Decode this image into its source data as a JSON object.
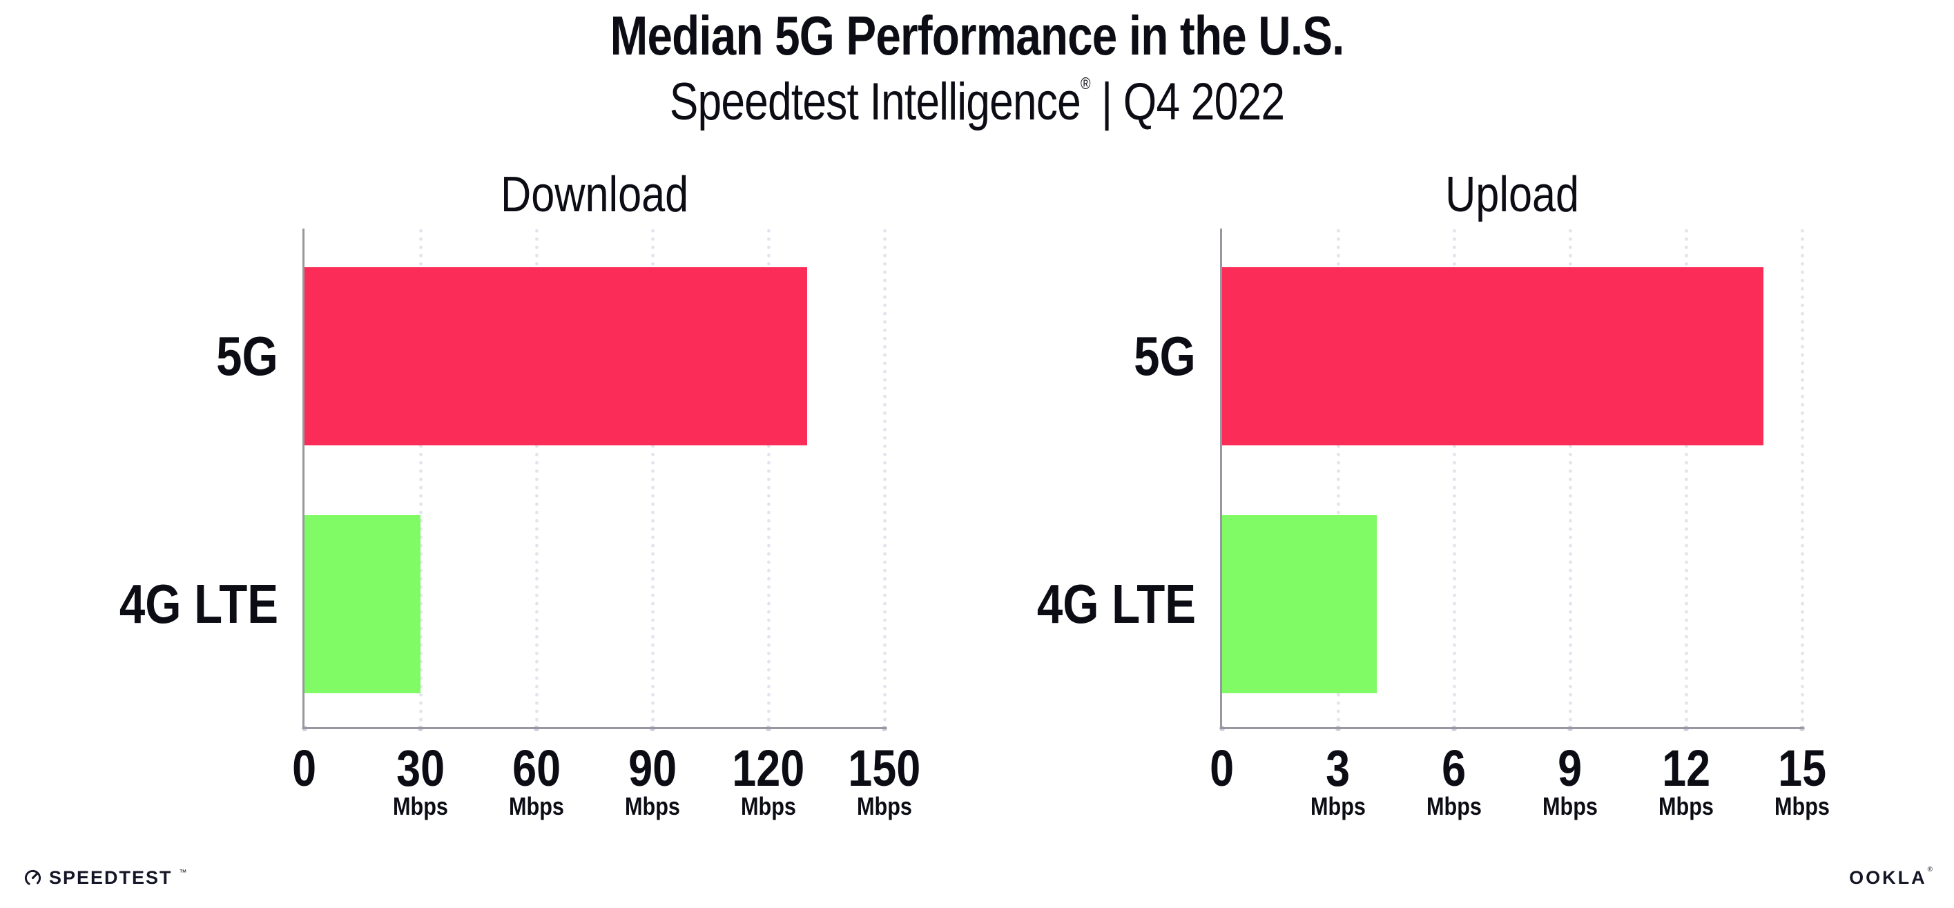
{
  "header": {
    "title": "Median 5G Performance in the U.S.",
    "subtitle_brand": "Speedtest Intelligence",
    "subtitle_reg": "®",
    "subtitle_sep": "|",
    "subtitle_period": "Q4 2022"
  },
  "chart_data": [
    {
      "type": "bar",
      "orientation": "horizontal",
      "title": "Download",
      "categories": [
        "5G",
        "4G LTE"
      ],
      "values": [
        130,
        30
      ],
      "unit": "Mbps",
      "xlim": [
        0,
        150
      ],
      "xticks": [
        0,
        30,
        60,
        90,
        120,
        150
      ],
      "bar_colors": [
        "#fb2c58",
        "#80fb66"
      ],
      "grid": "dotted-vertical-gridlines",
      "legend": "none"
    },
    {
      "type": "bar",
      "orientation": "horizontal",
      "title": "Upload",
      "categories": [
        "5G",
        "4G LTE"
      ],
      "values": [
        14,
        4
      ],
      "unit": "Mbps",
      "xlim": [
        0,
        15
      ],
      "xticks": [
        0,
        3,
        6,
        9,
        12,
        15
      ],
      "bar_colors": [
        "#fb2c58",
        "#80fb66"
      ],
      "grid": "dotted-vertical-gridlines",
      "legend": "none"
    }
  ],
  "footer": {
    "speedtest_label": "SPEEDTEST",
    "speedtest_tm": "™",
    "ookla_label": "OOKLA",
    "ookla_reg": "®"
  },
  "colors": {
    "bar_5g": "#fb2c58",
    "bar_4g_lte": "#80fb66",
    "axis_line": "#97979f",
    "gridline_dot": "#e3e3ef",
    "tick_dot": "#cdcdde",
    "text": "#0c0c14",
    "background": "#ffffff"
  }
}
